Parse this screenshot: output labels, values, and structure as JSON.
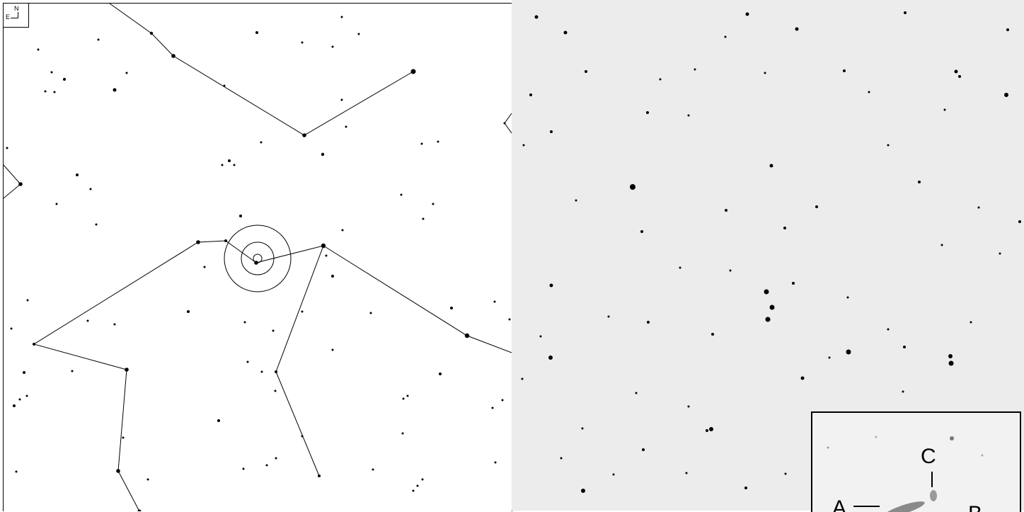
{
  "finder_chart": {
    "compass": {
      "north": "N",
      "east": "E"
    },
    "line_color": "#000000"
  },
  "photo": {
    "background_color": "#ececec",
    "inset": {
      "labels": {
        "a": "A",
        "b": "B",
        "c": "C"
      }
    }
  }
}
